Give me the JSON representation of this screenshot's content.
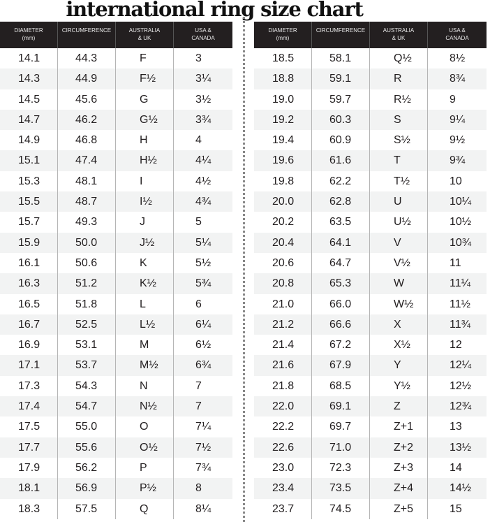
{
  "title": "international ring size chart",
  "headers": [
    "DIAMETER\n(mm)",
    "CIRCUMFERENCE",
    "AUSTRALIA\n& UK",
    "USA &\nCANADA"
  ],
  "left_rows": [
    [
      "14.1",
      "44.3",
      "F",
      "3"
    ],
    [
      "14.3",
      "44.9",
      "F½",
      "3¼"
    ],
    [
      "14.5",
      "45.6",
      "G",
      "3½"
    ],
    [
      "14.7",
      "46.2",
      "G½",
      "3¾"
    ],
    [
      "14.9",
      "46.8",
      "H",
      "4"
    ],
    [
      "15.1",
      "47.4",
      "H½",
      "4¼"
    ],
    [
      "15.3",
      "48.1",
      "I",
      "4½"
    ],
    [
      "15.5",
      "48.7",
      "I½",
      "4¾"
    ],
    [
      "15.7",
      "49.3",
      "J",
      "5"
    ],
    [
      "15.9",
      "50.0",
      "J½",
      "5¼"
    ],
    [
      "16.1",
      "50.6",
      "K",
      "5½"
    ],
    [
      "16.3",
      "51.2",
      "K½",
      "5¾"
    ],
    [
      "16.5",
      "51.8",
      "L",
      "6"
    ],
    [
      "16.7",
      "52.5",
      "L½",
      "6¼"
    ],
    [
      "16.9",
      "53.1",
      "M",
      "6½"
    ],
    [
      "17.1",
      "53.7",
      "M½",
      "6¾"
    ],
    [
      "17.3",
      "54.3",
      "N",
      "7"
    ],
    [
      "17.4",
      "54.7",
      "N½",
      "7"
    ],
    [
      "17.5",
      "55.0",
      "O",
      "7¼"
    ],
    [
      "17.7",
      "55.6",
      "O½",
      "7½"
    ],
    [
      "17.9",
      "56.2",
      "P",
      "7¾"
    ],
    [
      "18.1",
      "56.9",
      "P½",
      "8"
    ],
    [
      "18.3",
      "57.5",
      "Q",
      "8¼"
    ]
  ],
  "right_rows": [
    [
      "18.5",
      "58.1",
      "Q½",
      "8½"
    ],
    [
      "18.8",
      "59.1",
      "R",
      "8¾"
    ],
    [
      "19.0",
      "59.7",
      "R½",
      "9"
    ],
    [
      "19.2",
      "60.3",
      "S",
      "9¼"
    ],
    [
      "19.4",
      "60.9",
      "S½",
      "9½"
    ],
    [
      "19.6",
      "61.6",
      "T",
      "9¾"
    ],
    [
      "19.8",
      "62.2",
      "T½",
      "10"
    ],
    [
      "20.0",
      "62.8",
      "U",
      "10¼"
    ],
    [
      "20.2",
      "63.5",
      "U½",
      "10½"
    ],
    [
      "20.4",
      "64.1",
      "V",
      "10¾"
    ],
    [
      "20.6",
      "64.7",
      "V½",
      "11"
    ],
    [
      "20.8",
      "65.3",
      "W",
      "11¼"
    ],
    [
      "21.0",
      "66.0",
      "W½",
      "11½"
    ],
    [
      "21.2",
      "66.6",
      "X",
      "11¾"
    ],
    [
      "21.4",
      "67.2",
      "X½",
      "12"
    ],
    [
      "21.6",
      "67.9",
      "Y",
      "12¼"
    ],
    [
      "21.8",
      "68.5",
      "Y½",
      "12½"
    ],
    [
      "22.0",
      "69.1",
      "Z",
      "12¾"
    ],
    [
      "22.2",
      "69.7",
      "Z+1",
      "13"
    ],
    [
      "22.6",
      "71.0",
      "Z+2",
      "13½"
    ],
    [
      "23.0",
      "72.3",
      "Z+3",
      "14"
    ],
    [
      "23.4",
      "73.5",
      "Z+4",
      "14½"
    ],
    [
      "23.7",
      "74.5",
      "Z+5",
      "15"
    ]
  ],
  "colors": {
    "header_bg": "#231f20",
    "alt_row": "#f2f3f3",
    "text": "#231f20"
  }
}
